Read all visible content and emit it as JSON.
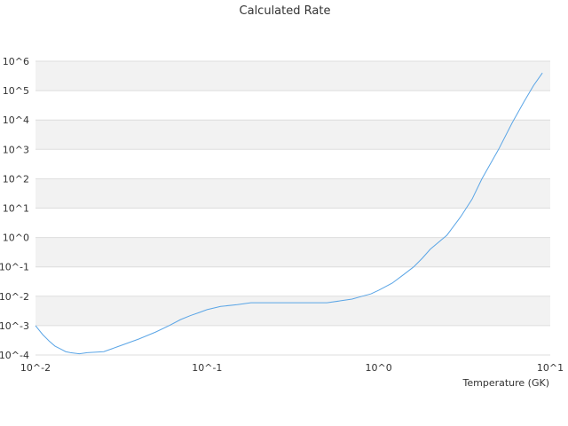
{
  "chart_data": {
    "type": "line",
    "title": "Calculated Rate",
    "xlabel": "Temperature (GK)",
    "ylabel": "",
    "x_scale": "log",
    "y_scale": "log",
    "xlim": [
      0.01,
      10
    ],
    "ylim": [
      0.0001,
      1000000
    ],
    "grid": "alternating horizontal bands",
    "legend": "none",
    "x_tick_labels": [
      "10^-2",
      "10^-1",
      "10^0",
      "10^1"
    ],
    "y_tick_labels": [
      "10^-4",
      "10^-3",
      "10^-2",
      "10^-1",
      "10^0",
      "10^1",
      "10^2",
      "10^3",
      "10^4",
      "10^5",
      "10^6"
    ],
    "colors": {
      "line": "#5aa5e6",
      "band": "#f2f2f2",
      "grid": "#dddddd"
    },
    "series": [
      {
        "x": [
          0.01,
          0.011,
          0.012,
          0.013,
          0.014,
          0.015,
          0.016,
          0.018,
          0.02,
          0.025,
          0.03,
          0.04,
          0.05,
          0.06,
          0.07,
          0.08,
          0.09,
          0.1,
          0.12,
          0.15,
          0.18,
          0.2,
          0.25,
          0.3,
          0.4,
          0.5,
          0.6,
          0.7,
          0.8,
          0.9,
          1.0,
          1.2,
          1.4,
          1.6,
          1.8,
          2.0,
          2.5,
          3.0,
          3.5,
          4.0,
          5.0,
          6.0,
          7.0,
          8.0,
          9.0
        ],
        "y": [
          0.001,
          0.0005,
          0.0003,
          0.0002,
          0.00016,
          0.00013,
          0.00012,
          0.00011,
          0.00012,
          0.00013,
          0.00019,
          0.00035,
          0.0006,
          0.001,
          0.0016,
          0.0022,
          0.0028,
          0.0035,
          0.0045,
          0.0052,
          0.006,
          0.006,
          0.006,
          0.006,
          0.006,
          0.006,
          0.007,
          0.008,
          0.01,
          0.012,
          0.016,
          0.028,
          0.055,
          0.1,
          0.2,
          0.4,
          1.2,
          5,
          20,
          100,
          1000,
          8000,
          40000,
          150000,
          400000
        ]
      }
    ]
  }
}
